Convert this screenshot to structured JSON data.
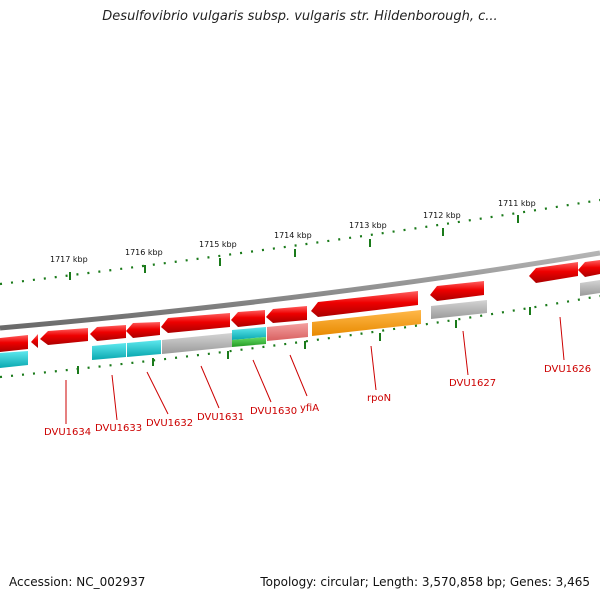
{
  "title": "Desulfovibrio vulgaris subsp. vulgaris str. Hildenborough, c...",
  "footer": {
    "accession": "Accession: NC_002937",
    "topology": "Topology: circular; Length: 3,570,858 bp; Genes: 3,465"
  },
  "scale_labels": [
    "1717 kbp",
    "1716 kbp",
    "1715 kbp",
    "1714 kbp",
    "1713 kbp",
    "1712 kbp",
    "1711 kbp"
  ],
  "gene_labels": [
    "DVU1634",
    "DVU1633",
    "DVU1632",
    "DVU1631",
    "DVU1630",
    "yfiA",
    "rpoN",
    "DVU1627",
    "DVU1626"
  ],
  "colors": {
    "forward_arrow": "#ee0000",
    "backbone": "#808080",
    "tick": "#1a7a1a",
    "label": "#cc0000",
    "cyan_feature": "#11c6cc",
    "gray_feature": "#b0b0b0",
    "salmon_feature": "#ee8080",
    "green_feature": "#33bb33",
    "orange_feature": "#ff9900"
  }
}
